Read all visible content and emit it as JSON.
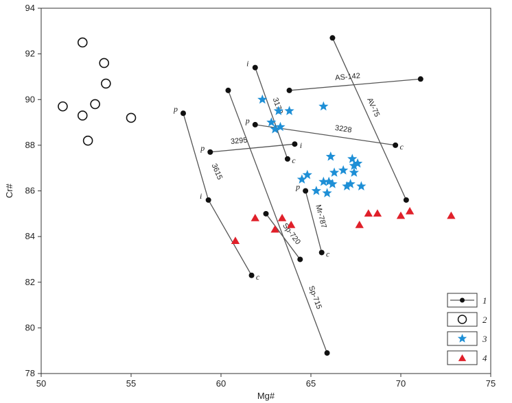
{
  "chart_data": {
    "type": "scatter",
    "xlabel": "Mg#",
    "ylabel": "Cr#",
    "xlim": [
      50,
      75
    ],
    "ylim": [
      78,
      94
    ],
    "x_ticks": [
      50,
      55,
      60,
      65,
      70,
      75
    ],
    "y_ticks": [
      78,
      80,
      82,
      84,
      86,
      88,
      90,
      92,
      94
    ],
    "grid": false,
    "legend_position": "bottom-right",
    "legend": [
      {
        "marker": "line-dot",
        "label": "1"
      },
      {
        "marker": "open-circle",
        "label": "2"
      },
      {
        "marker": "star",
        "label": "3"
      },
      {
        "marker": "triangle",
        "label": "4"
      }
    ],
    "segments": [
      {
        "name": "3179",
        "start": {
          "x": 61.9,
          "y": 91.4,
          "label": "i"
        },
        "end": {
          "x": 63.7,
          "y": 87.4,
          "label": "c"
        }
      },
      {
        "name": "AS-142",
        "start": {
          "x": 63.8,
          "y": 90.4,
          "label": ""
        },
        "end": {
          "x": 71.1,
          "y": 90.9,
          "label": ""
        }
      },
      {
        "name": "AV-75",
        "start": {
          "x": 66.2,
          "y": 92.7,
          "label": ""
        },
        "end": {
          "x": 70.3,
          "y": 85.6,
          "label": ""
        }
      },
      {
        "name": "3228",
        "start": {
          "x": 61.9,
          "y": 88.9,
          "label": "p"
        },
        "end": {
          "x": 69.7,
          "y": 88.0,
          "label": "c"
        }
      },
      {
        "name": "3295",
        "start": {
          "x": 59.4,
          "y": 87.7,
          "label": "p"
        },
        "end": {
          "x": 64.1,
          "y": 88.05,
          "label": "i"
        }
      },
      {
        "name": "3615",
        "start": {
          "x": 57.9,
          "y": 89.4,
          "label": "p"
        },
        "mid": {
          "x": 59.3,
          "y": 85.6,
          "label": "i"
        },
        "end": {
          "x": 61.7,
          "y": 82.3,
          "label": "c"
        }
      },
      {
        "name": "Sp-720",
        "start": {
          "x": 62.5,
          "y": 85.0,
          "label": ""
        },
        "end": {
          "x": 64.4,
          "y": 83.0,
          "label": ""
        }
      },
      {
        "name": "Sp-715",
        "start": {
          "x": 60.4,
          "y": 90.4,
          "label": ""
        },
        "end": {
          "x": 65.9,
          "y": 78.9,
          "label": ""
        }
      },
      {
        "name": "Mr-787",
        "start": {
          "x": 64.7,
          "y": 86.0,
          "label": "p"
        },
        "end": {
          "x": 65.6,
          "y": 83.3,
          "label": "c"
        }
      }
    ],
    "series": [
      {
        "marker": "open-circle",
        "points": [
          [
            51.2,
            89.7
          ],
          [
            52.3,
            92.5
          ],
          [
            52.3,
            89.3
          ],
          [
            52.6,
            88.2
          ],
          [
            53.0,
            89.8
          ],
          [
            53.5,
            91.6
          ],
          [
            53.6,
            90.7
          ],
          [
            55.0,
            89.2
          ]
        ]
      },
      {
        "marker": "star",
        "points": [
          [
            62.3,
            90.0
          ],
          [
            62.8,
            89.0
          ],
          [
            63.0,
            88.7
          ],
          [
            63.2,
            89.5
          ],
          [
            63.3,
            88.8
          ],
          [
            63.8,
            89.5
          ],
          [
            65.7,
            89.7
          ],
          [
            64.5,
            86.5
          ],
          [
            64.8,
            86.7
          ],
          [
            65.3,
            86.0
          ],
          [
            65.7,
            86.4
          ],
          [
            65.9,
            85.9
          ],
          [
            66.0,
            86.4
          ],
          [
            66.1,
            87.5
          ],
          [
            66.2,
            86.3
          ],
          [
            66.3,
            86.8
          ],
          [
            66.8,
            86.9
          ],
          [
            67.0,
            86.2
          ],
          [
            67.2,
            86.3
          ],
          [
            67.3,
            87.4
          ],
          [
            67.4,
            87.1
          ],
          [
            67.4,
            86.8
          ],
          [
            67.6,
            87.2
          ],
          [
            67.8,
            86.2
          ]
        ]
      },
      {
        "marker": "triangle",
        "points": [
          [
            60.8,
            83.8
          ],
          [
            61.9,
            84.8
          ],
          [
            63.0,
            84.3
          ],
          [
            63.4,
            84.8
          ],
          [
            63.9,
            84.5
          ],
          [
            67.7,
            84.5
          ],
          [
            68.2,
            85.0
          ],
          [
            68.7,
            85.0
          ],
          [
            70.0,
            84.9
          ],
          [
            70.5,
            85.1
          ],
          [
            72.8,
            84.9
          ]
        ]
      }
    ]
  }
}
